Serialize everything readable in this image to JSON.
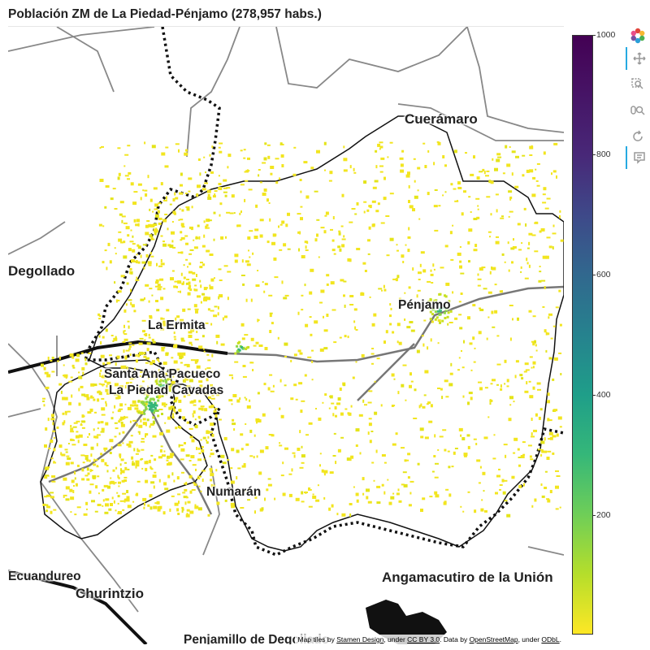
{
  "title": "Población ZM de La Piedad-Pénjamo (278,957 habs.)",
  "places": [
    {
      "name": "Cuerámaro"
    },
    {
      "name": "Degollado"
    },
    {
      "name": "Pénjamo"
    },
    {
      "name": "La Ermita"
    },
    {
      "name": "Santa Ana Pacueco"
    },
    {
      "name": "La Piedad Cavadas"
    },
    {
      "name": "Numarán"
    },
    {
      "name": "Ecuandureo"
    },
    {
      "name": "Churintzio"
    },
    {
      "name": "Angamacutiro de la Unión"
    },
    {
      "name": "Penjamillo de Degollado"
    }
  ],
  "attribution": {
    "prefix": "Map tiles by ",
    "stamen": "Stamen Design",
    "under1": ", under ",
    "ccby": "CC BY 3.0",
    "data_by": ". Data by ",
    "osm": "OpenStreetMap",
    "under2": ", under ",
    "odbl": "ODbL",
    "suffix": "."
  },
  "colorbar": {
    "min": 0,
    "max": 1000,
    "ticks": [
      "200",
      "400",
      "600",
      "800",
      "1000"
    ],
    "palette": "Viridis",
    "low_color": "#fde725",
    "high_color": "#440154"
  },
  "toolbar": [
    {
      "icon": "bokeh-logo-icon",
      "active": false
    },
    {
      "icon": "pan-icon",
      "active": true
    },
    {
      "icon": "box-zoom-icon",
      "active": false
    },
    {
      "icon": "wheel-zoom-icon",
      "active": false
    },
    {
      "icon": "reset-icon",
      "active": false
    },
    {
      "icon": "hover-icon",
      "active": true
    }
  ]
}
